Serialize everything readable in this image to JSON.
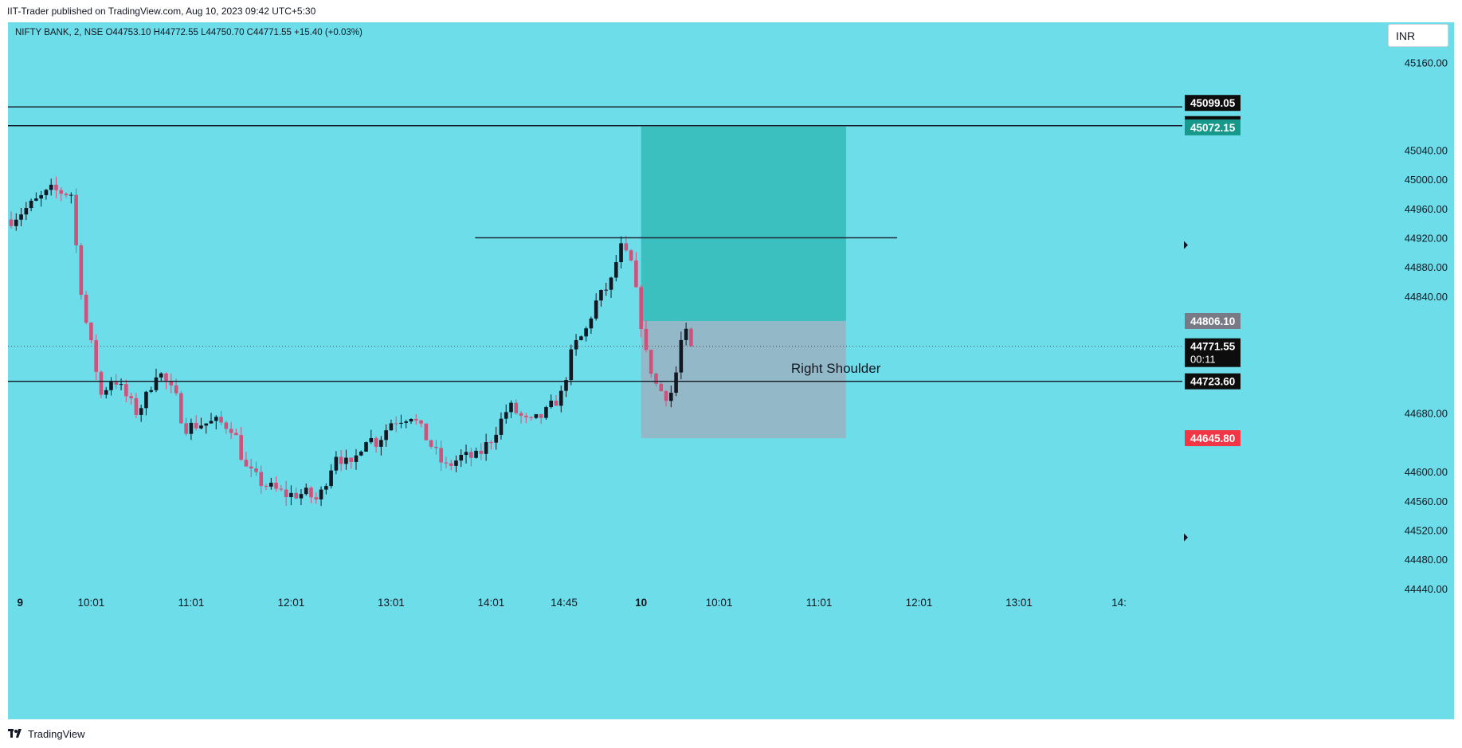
{
  "header": {
    "publish_line": "IIT-Trader published on TradingView.com, Aug 10, 2023 09:42 UTC+5:30"
  },
  "legend": {
    "symbol_line": "NIFTY BANK, 2, NSE  O44753.10  H44772.55  L44750.70  C44771.55  +15.40 (+0.03%)"
  },
  "currency": {
    "label": "INR"
  },
  "footer": {
    "brand": "TradingView"
  },
  "colors": {
    "background": "#6cdde9",
    "up_candle": "#131722",
    "down_candle": "#d1517a",
    "profit_zone": "#3cbfbf",
    "loss_zone": "#93b9c9",
    "target_badge": "#16998a",
    "stop_badge": "#f23645",
    "entry_badge": "#787b86"
  },
  "chart_data": {
    "type": "candlestick",
    "symbol": "NIFTY BANK",
    "interval": "2",
    "exchange": "NSE",
    "ohlc": {
      "open": 44753.1,
      "high": 44772.55,
      "low": 44750.7,
      "close": 44771.55,
      "change": "+15.40 (+0.03%)"
    },
    "ylim": [
      44440,
      45200
    ],
    "y_ticks": [
      45160,
      45040,
      45000,
      44960,
      44920,
      44880,
      44840,
      44680,
      44600,
      44560,
      44520,
      44480,
      44440
    ],
    "y_tick_labels": [
      "45160.00",
      "45040.00",
      "45000.00",
      "44960.00",
      "44920.00",
      "44880.00",
      "44840.00",
      "44680.00",
      "44600.00",
      "44560.00",
      "44520.00",
      "44480.00",
      "44440.00"
    ],
    "x_labels": [
      {
        "label": "9",
        "bold": true,
        "t": 0.9
      },
      {
        "label": "10:01",
        "bold": false,
        "t": 8.0
      },
      {
        "label": "11:01",
        "bold": false,
        "t": 18.0
      },
      {
        "label": "12:01",
        "bold": false,
        "t": 28.0
      },
      {
        "label": "13:01",
        "bold": false,
        "t": 38.0
      },
      {
        "label": "14:01",
        "bold": false,
        "t": 48.0
      },
      {
        "label": "14:45",
        "bold": false,
        "t": 55.3
      },
      {
        "label": "10",
        "bold": true,
        "t": 63.0
      },
      {
        "label": "10:01",
        "bold": false,
        "t": 70.8
      },
      {
        "label": "11:01",
        "bold": false,
        "t": 80.8
      },
      {
        "label": "12:01",
        "bold": false,
        "t": 90.8
      },
      {
        "label": "13:01",
        "bold": false,
        "t": 100.8
      },
      {
        "label": "14:",
        "bold": false,
        "t": 110.8
      }
    ],
    "candle_keypoints": [
      [
        0,
        44945
      ],
      [
        2,
        44965
      ],
      [
        4,
        44985
      ],
      [
        6,
        44980
      ],
      [
        6.7,
        44880
      ],
      [
        7.4,
        44810
      ],
      [
        8.2,
        44760
      ],
      [
        9,
        44705
      ],
      [
        10.2,
        44730
      ],
      [
        11.4,
        44705
      ],
      [
        12.6,
        44680
      ],
      [
        13.6,
        44705
      ],
      [
        14.6,
        44740
      ],
      [
        15.6,
        44720
      ],
      [
        16.5,
        44700
      ],
      [
        17.3,
        44660
      ],
      [
        18.8,
        44665
      ],
      [
        20.6,
        44668
      ],
      [
        22.2,
        44660
      ],
      [
        23.4,
        44605
      ],
      [
        25,
        44585
      ],
      [
        26.4,
        44575
      ],
      [
        27.6,
        44568
      ],
      [
        29.5,
        44570
      ],
      [
        30.7,
        44560
      ],
      [
        32.5,
        44625
      ],
      [
        34,
        44605
      ],
      [
        35.4,
        44648
      ],
      [
        36.6,
        44640
      ],
      [
        38,
        44668
      ],
      [
        40,
        44678
      ],
      [
        41.8,
        44640
      ],
      [
        43.4,
        44605
      ],
      [
        45,
        44620
      ],
      [
        46.6,
        44620
      ],
      [
        48,
        44645
      ],
      [
        49.8,
        44690
      ],
      [
        51.8,
        44665
      ],
      [
        53.3,
        44678
      ],
      [
        55,
        44705
      ],
      [
        56.2,
        44770
      ],
      [
        57.4,
        44790
      ],
      [
        58.4,
        44830
      ],
      [
        60,
        44860
      ],
      [
        60.9,
        44908
      ],
      [
        62,
        44885
      ],
      [
        62.8,
        44820
      ],
      [
        63.5,
        44760
      ],
      [
        64.6,
        44715
      ],
      [
        65.5,
        44705
      ],
      [
        66.2,
        44710
      ],
      [
        67.2,
        44795
      ],
      [
        68.1,
        44771.55
      ]
    ],
    "horizontal_levels": [
      45099.05,
      45073.4,
      44723.6
    ],
    "neckline_level": 44920,
    "current_price": 44771.55,
    "countdown": "00:11",
    "position": {
      "entry": 44806.1,
      "target": 45072.15,
      "stop": 44645.8,
      "start_t": 63.0,
      "end_t": 83.5
    },
    "price_badges": [
      {
        "label": "45099.05",
        "kind": "line"
      },
      {
        "label": "45073.40",
        "kind": "line"
      },
      {
        "label": "45072.15",
        "kind": "target"
      },
      {
        "label": "44806.10",
        "kind": "entry"
      },
      {
        "label": "44771.55",
        "kind": "current"
      },
      {
        "label": "44723.60",
        "kind": "line"
      },
      {
        "label": "44645.80",
        "kind": "stop"
      }
    ],
    "annotation": "Right Shoulder",
    "annotation_price": 44735,
    "annotation_t": 78.0,
    "neckline_range_t": [
      46.4,
      88.6
    ]
  }
}
